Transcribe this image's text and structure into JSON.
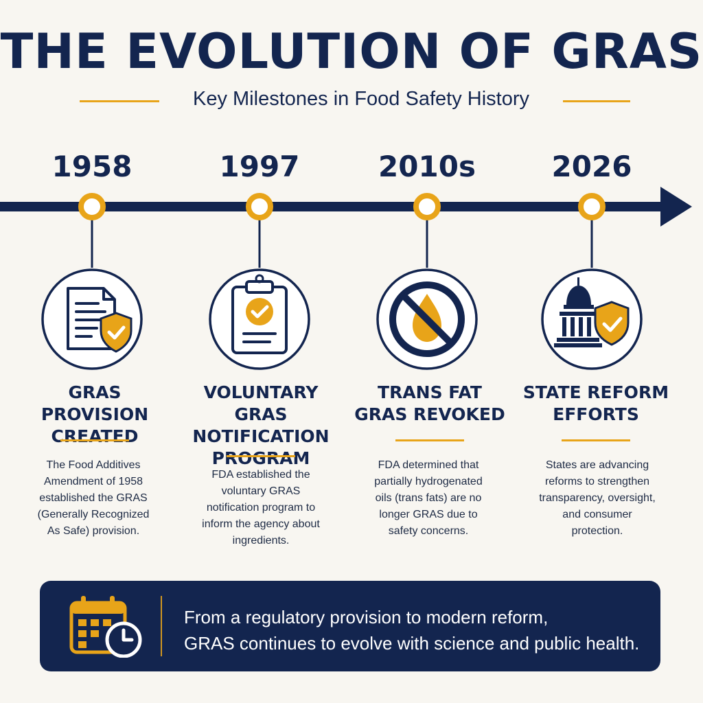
{
  "header": {
    "title": "THE EVOLUTION OF GRAS",
    "subtitle": "Key Milestones in Food Safety History"
  },
  "colors": {
    "navy": "#13254f",
    "gold": "#e8a419",
    "background": "#f8f6f1"
  },
  "milestones": [
    {
      "year": "1958",
      "icon": "document-shield-icon",
      "title_lines": [
        "GRAS PROVISION",
        "CREATED"
      ],
      "description_lines": [
        "The Food Additives",
        "Amendment of 1958",
        "established the GRAS",
        "(Generally Recognized",
        "As Safe) provision."
      ]
    },
    {
      "year": "1997",
      "icon": "clipboard-check-icon",
      "title_lines": [
        "VOLUNTARY GRAS",
        "NOTIFICATION",
        "PROGRAM"
      ],
      "description_lines": [
        "FDA established the",
        "voluntary GRAS",
        "notification program to",
        "inform the agency about",
        "ingredients."
      ]
    },
    {
      "year": "2010s",
      "icon": "no-oil-drop-icon",
      "title_lines": [
        "TRANS FAT",
        "GRAS REVOKED"
      ],
      "description_lines": [
        "FDA determined that",
        "partially hydrogenated",
        "oils (trans fats) are no",
        "longer GRAS due to",
        "safety concerns."
      ]
    },
    {
      "year": "2026",
      "icon": "capitol-shield-icon",
      "title_lines": [
        "STATE REFORM",
        "EFFORTS"
      ],
      "description_lines": [
        "States are advancing",
        "reforms to strengthen",
        "transparency, oversight,",
        "and consumer",
        "protection."
      ]
    }
  ],
  "banner": {
    "icon": "calendar-clock-icon",
    "lines": [
      "From a regulatory provision to modern reform,",
      "GRAS continues to evolve with science and public health."
    ]
  }
}
